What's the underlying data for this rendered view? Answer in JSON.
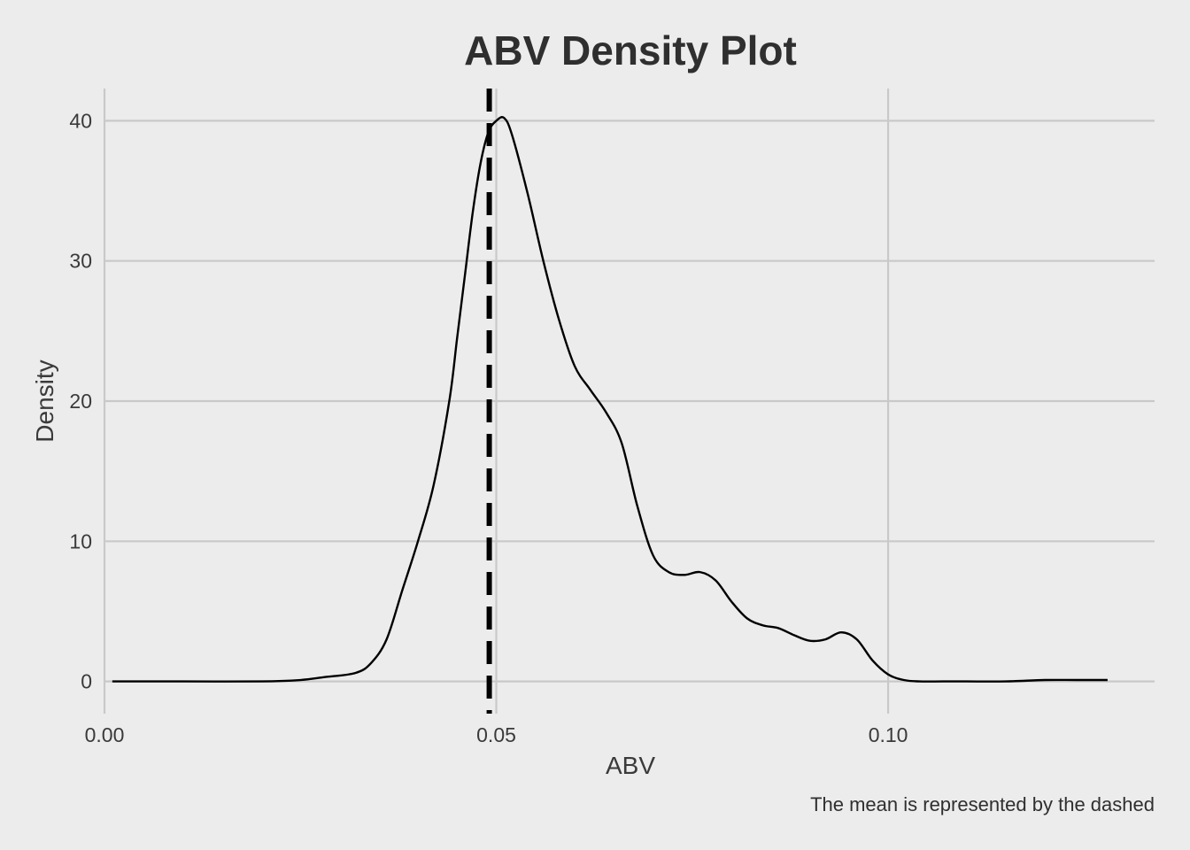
{
  "chart_data": {
    "type": "line",
    "title": "ABV Density Plot",
    "xlabel": "ABV",
    "ylabel": "Density",
    "caption": "The mean is represented by the dashed",
    "xlim": [
      0.0,
      0.134
    ],
    "ylim": [
      -2.3,
      42.3
    ],
    "x_ticks": [
      0.0,
      0.05,
      0.1
    ],
    "x_tick_labels": [
      "0.00",
      "0.05",
      "0.10"
    ],
    "y_ticks": [
      0,
      10,
      20,
      30,
      40
    ],
    "y_tick_labels": [
      "0",
      "10",
      "20",
      "30",
      "40"
    ],
    "grid": true,
    "legend": "none",
    "mean_line": {
      "x": 0.0491,
      "style": "dashed"
    },
    "series": [
      {
        "x": [
          0.001,
          0.01,
          0.02,
          0.025,
          0.028,
          0.032,
          0.034,
          0.036,
          0.038,
          0.04,
          0.042,
          0.044,
          0.045,
          0.046,
          0.047,
          0.048,
          0.049,
          0.05,
          0.051,
          0.052,
          0.054,
          0.056,
          0.058,
          0.06,
          0.062,
          0.064,
          0.066,
          0.068,
          0.07,
          0.072,
          0.074,
          0.076,
          0.078,
          0.08,
          0.082,
          0.084,
          0.086,
          0.088,
          0.09,
          0.092,
          0.094,
          0.096,
          0.098,
          0.1,
          0.102,
          0.104,
          0.107,
          0.11,
          0.115,
          0.12,
          0.124,
          0.128
        ],
        "values": [
          0.0,
          0.0,
          0.0,
          0.1,
          0.3,
          0.6,
          1.3,
          3.0,
          6.5,
          10.0,
          14.0,
          20.0,
          24.5,
          29.0,
          33.5,
          37.0,
          39.2,
          40.0,
          40.2,
          39.0,
          34.8,
          30.0,
          25.8,
          22.5,
          20.8,
          19.2,
          17.0,
          12.5,
          9.0,
          7.8,
          7.6,
          7.8,
          7.2,
          5.7,
          4.5,
          4.0,
          3.8,
          3.3,
          2.9,
          3.0,
          3.5,
          3.0,
          1.5,
          0.5,
          0.1,
          0.0,
          0.0,
          0.0,
          0.0,
          0.1,
          0.1,
          0.1
        ]
      }
    ]
  }
}
